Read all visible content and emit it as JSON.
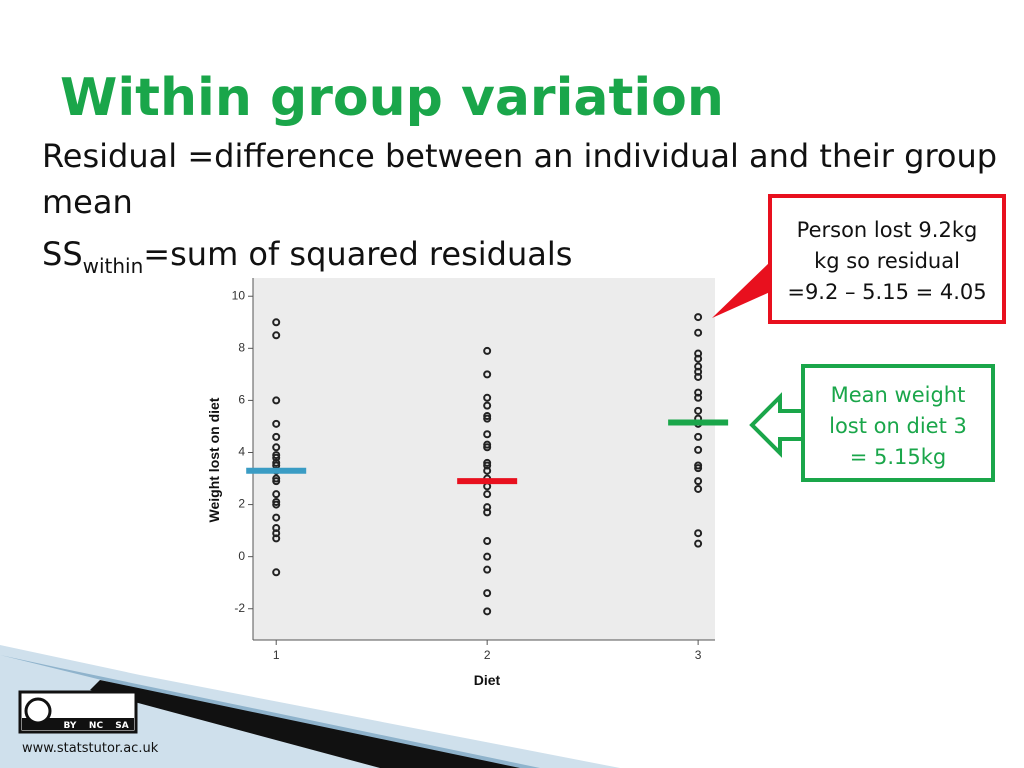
{
  "slide": {
    "title": "Within group variation",
    "bullets": [
      "Residual =difference between an individual and their group mean"
    ],
    "ss_line": {
      "prefix": "SS",
      "subscript": "within",
      "rest": "=sum of squared residuals"
    },
    "callout_residual": [
      "Person lost 9.2kg",
      "kg so residual",
      "=9.2 – 5.15 = 4.05"
    ],
    "callout_mean": [
      "Mean weight",
      "lost on diet 3",
      "= 5.15kg"
    ],
    "license": [
      "BY",
      "NC",
      "SA"
    ],
    "footer": "www.statstutor.ac.uk"
  },
  "chart_data": {
    "type": "scatter",
    "x_label": "Diet",
    "y_label": "Weight lost on diet",
    "xlim": [
      0.89,
      3.08
    ],
    "xticks": [
      1,
      2,
      3
    ],
    "ylim": [
      -3.2,
      10.7
    ],
    "yticks": [
      -2,
      0,
      2,
      4,
      6,
      8,
      10
    ],
    "series": [
      {
        "x": 1,
        "color": "#222222",
        "mean": 3.3,
        "mean_color": "#3a9cc4",
        "values": [
          9.0,
          8.5,
          6.0,
          5.1,
          4.6,
          4.2,
          3.9,
          3.8,
          3.6,
          3.5,
          3.3,
          3.0,
          2.9,
          2.4,
          2.1,
          2.0,
          1.5,
          1.1,
          0.9,
          0.7,
          -0.6
        ]
      },
      {
        "x": 2,
        "color": "#222222",
        "mean": 2.9,
        "mean_color": "#e8101e",
        "values": [
          7.9,
          7.0,
          6.1,
          5.8,
          5.4,
          5.3,
          4.7,
          4.3,
          4.2,
          3.6,
          3.5,
          3.3,
          3.0,
          2.7,
          2.4,
          1.9,
          1.7,
          0.6,
          0.0,
          -0.5,
          -1.4,
          -2.1
        ]
      },
      {
        "x": 3,
        "color": "#222222",
        "mean": 5.15,
        "mean_color": "#1aa64a",
        "values": [
          9.2,
          8.6,
          7.8,
          7.6,
          7.3,
          7.1,
          6.9,
          6.3,
          6.1,
          5.6,
          5.3,
          5.1,
          4.6,
          4.1,
          3.5,
          3.4,
          2.9,
          2.6,
          0.9,
          0.5
        ]
      }
    ]
  }
}
